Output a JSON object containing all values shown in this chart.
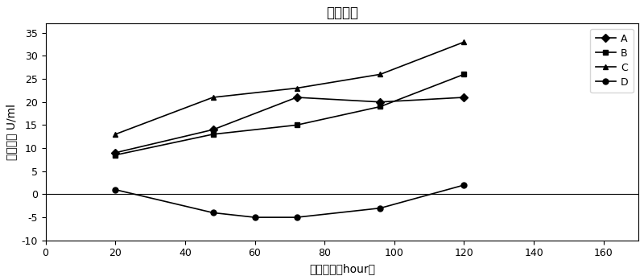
{
  "title": "酶活曲线",
  "xlabel": "诱导时间（hour）",
  "ylabel": "酶活大小 U/ml",
  "xlim": [
    0,
    170
  ],
  "ylim": [
    -10,
    37
  ],
  "xticks": [
    0,
    20,
    40,
    60,
    80,
    100,
    120,
    140,
    160
  ],
  "yticks": [
    -10,
    -5,
    0,
    5,
    10,
    15,
    20,
    25,
    30,
    35
  ],
  "series": {
    "A": {
      "x": [
        20,
        48,
        72,
        96,
        120
      ],
      "y": [
        9,
        14,
        21,
        20,
        21
      ],
      "marker": "D",
      "markersize": 5
    },
    "B": {
      "x": [
        20,
        48,
        72,
        96,
        120
      ],
      "y": [
        8.5,
        13,
        15,
        19,
        26
      ],
      "marker": "s",
      "markersize": 5
    },
    "C": {
      "x": [
        20,
        48,
        72,
        96,
        120
      ],
      "y": [
        13,
        21,
        23,
        26,
        33
      ],
      "marker": "^",
      "markersize": 5
    },
    "D": {
      "x": [
        20,
        48,
        60,
        72,
        96,
        120
      ],
      "y": [
        1,
        -4,
        -5,
        -5,
        -3,
        2
      ],
      "marker": "o",
      "markersize": 5
    }
  },
  "line_color": "#000000",
  "line_width": 1.2,
  "legend_order": [
    "A",
    "B",
    "C",
    "D"
  ],
  "background_color": "#ffffff",
  "zero_line": true,
  "title_fontsize": 12,
  "label_fontsize": 10,
  "tick_fontsize": 9,
  "legend_fontsize": 9
}
